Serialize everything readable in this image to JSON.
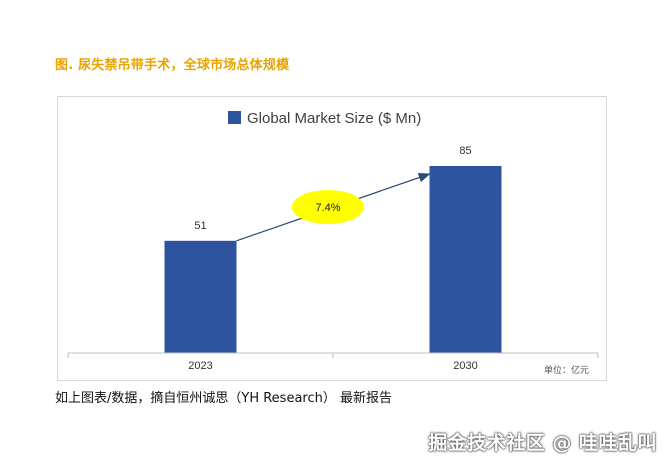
{
  "figure": {
    "title": "图. 尿失禁吊带手术，全球市场总体规模",
    "source_note": "如上图表/数据，摘自恒州诚思（YH Research） 最新报告",
    "watermark": "掘金技术社区 @ 哇哇乱叫"
  },
  "colors": {
    "bar": "#2e54a0",
    "growth_bubble": "#ffff00",
    "arrow": "#2e4a7a",
    "title": "#e8a400"
  },
  "chart_data": {
    "type": "bar",
    "legend": [
      "Global Market Size ($ Mn)"
    ],
    "legend_position": "top-center",
    "categories": [
      "2023",
      "2030"
    ],
    "series": [
      {
        "name": "Global Market Size ($ Mn)",
        "values": [
          51,
          85
        ]
      }
    ],
    "data_labels": [
      "51",
      "85"
    ],
    "annotation": {
      "text": "7.4%",
      "shape": "ellipse",
      "arrow_from": "2023",
      "arrow_to": "2030"
    },
    "unit_note": "单位：亿元",
    "ylim": [
      0,
      100
    ],
    "grid": false
  }
}
